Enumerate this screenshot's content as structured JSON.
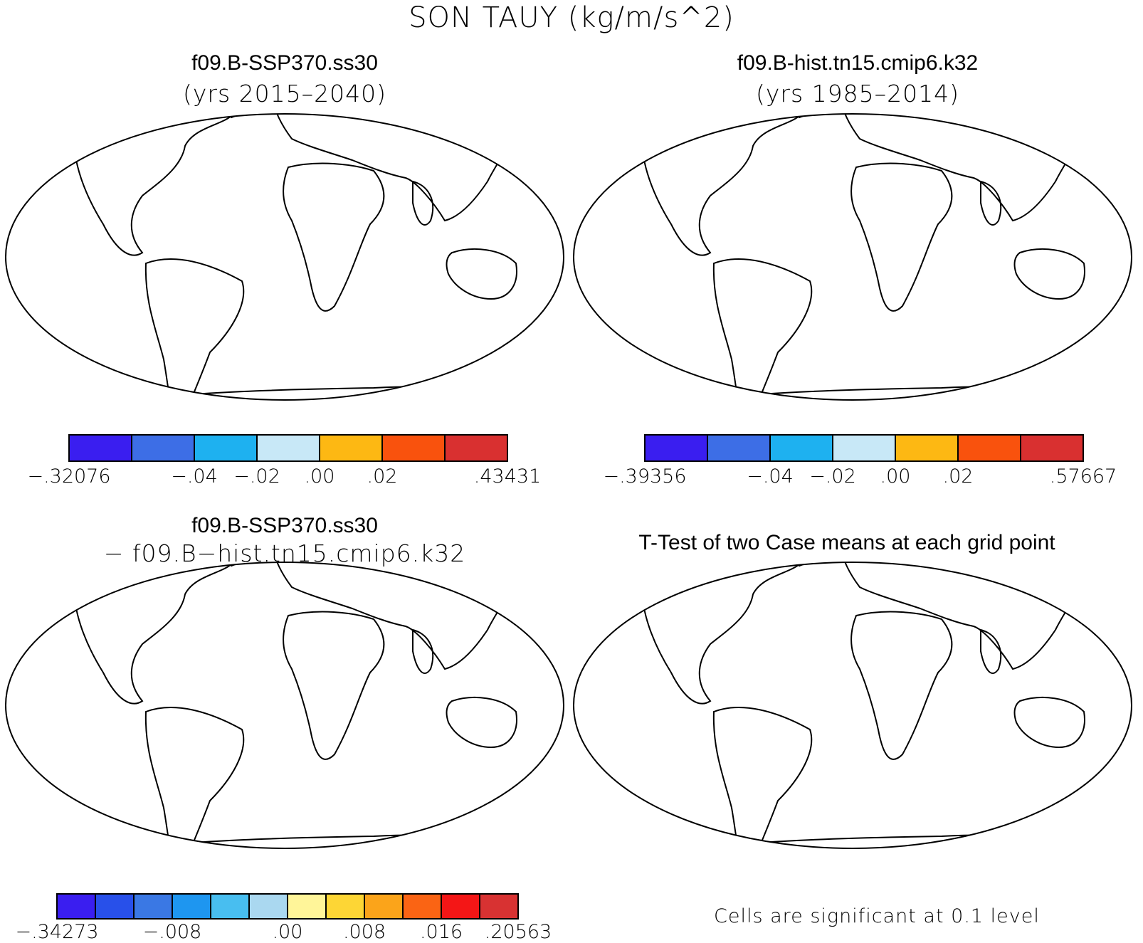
{
  "figure": {
    "title": "SON TAUY (kg/m/s^2)"
  },
  "panels": [
    {
      "id": "case1",
      "title": "f09.B-SSP370.ss30",
      "subtitle": "(yrs 2015–2040)",
      "colorbar": {
        "colors": [
          "#3a1ef0",
          "#3d6ee6",
          "#1eb1f0",
          "#c8e8f7",
          "#fdb813",
          "#f9520d",
          "#d93030"
        ],
        "labels": [
          "−.32076",
          "−.04",
          "−.02",
          ".00",
          ".02",
          ".43431"
        ]
      }
    },
    {
      "id": "case2",
      "title": "f09.B-hist.tn15.cmip6.k32",
      "subtitle": "(yrs 1985–2014)",
      "colorbar": {
        "colors": [
          "#3a1ef0",
          "#3d6ee6",
          "#1eb1f0",
          "#c8e8f7",
          "#fdb813",
          "#f9520d",
          "#d93030"
        ],
        "labels": [
          "−.39356",
          "−.04",
          "−.02",
          ".00",
          ".02",
          ".57667"
        ]
      }
    },
    {
      "id": "difference",
      "title": "f09.B-SSP370.ss30",
      "subtitle": "− f09.B−hist.tn15.cmip6.k32",
      "colorbar": {
        "colors": [
          "#3a1ef0",
          "#2850ea",
          "#3a78e4",
          "#1e96f0",
          "#48bef0",
          "#aad8f0",
          "#fff599",
          "#fdd635",
          "#fba41a",
          "#fa6414",
          "#f41616",
          "#d83232"
        ],
        "labels": [
          "−.34273",
          "−.008",
          ".00",
          ".008",
          ".016",
          ".20563"
        ]
      }
    },
    {
      "id": "ttest",
      "title": "T-Test of two Case means at each grid point",
      "note": "Cells are significant at 0.1 level",
      "significant_color": "#ff0000"
    }
  ]
}
